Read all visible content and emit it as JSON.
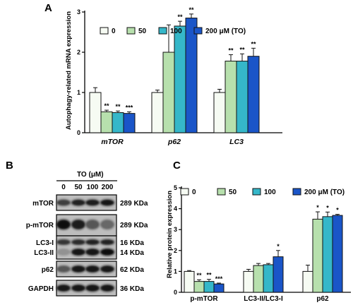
{
  "panels": {
    "a": "A",
    "b": "B",
    "c": "C"
  },
  "colors": {
    "s0": "#f6fbf3",
    "s50": "#b7e0ad",
    "s100": "#35b7c9",
    "s200": "#1a55c8",
    "stroke": "#111111"
  },
  "chart_data": [
    {
      "id": "A",
      "type": "bar",
      "ylabel": "Autophagy-related mRNA expression",
      "ylim": [
        0,
        3
      ],
      "yticks": [
        "0",
        "1",
        "2",
        "3"
      ],
      "categories": [
        "mTOR",
        "p62",
        "LC3"
      ],
      "series": [
        {
          "name": "0",
          "values": [
            1.0,
            1.0,
            1.0
          ],
          "errors": [
            0.12,
            0.06,
            0.08
          ]
        },
        {
          "name": "50",
          "values": [
            0.52,
            2.0,
            1.78
          ],
          "errors": [
            0.04,
            0.68,
            0.16
          ]
        },
        {
          "name": "100",
          "values": [
            0.5,
            2.65,
            1.78
          ],
          "errors": [
            0.04,
            0.12,
            0.18
          ]
        },
        {
          "name": "200 μM (TO)",
          "values": [
            0.48,
            2.85,
            1.9
          ],
          "errors": [
            0.04,
            0.1,
            0.2
          ]
        }
      ],
      "annotations": [
        [
          "",
          "**",
          "**",
          "***"
        ],
        [
          "",
          "",
          "**",
          "**"
        ],
        [
          "",
          "**",
          "**",
          "**"
        ]
      ],
      "legend": "top"
    },
    {
      "id": "C",
      "type": "bar",
      "ylabel": "Relative protein expression",
      "ylim": [
        0,
        5
      ],
      "yticks": [
        "0",
        "1",
        "2",
        "3",
        "4",
        "5"
      ],
      "categories": [
        "p-mTOR",
        "LC3-II/LC3-I",
        "p62"
      ],
      "series": [
        {
          "name": "0",
          "values": [
            1.0,
            1.0,
            1.0
          ],
          "errors": [
            0.04,
            0.1,
            0.3
          ]
        },
        {
          "name": "50",
          "values": [
            0.52,
            1.28,
            3.5
          ],
          "errors": [
            0.08,
            0.1,
            0.35
          ]
        },
        {
          "name": "100",
          "values": [
            0.52,
            1.32,
            3.62
          ],
          "errors": [
            0.1,
            0.06,
            0.22
          ]
        },
        {
          "name": "200 μM (TO)",
          "values": [
            0.4,
            1.7,
            3.68
          ],
          "errors": [
            0.04,
            0.3,
            0.05
          ]
        }
      ],
      "annotations": [
        [
          "",
          "**",
          "**",
          "***"
        ],
        [
          "",
          "",
          "",
          "*"
        ],
        [
          "",
          "*",
          "*",
          "*"
        ]
      ],
      "legend": "top"
    }
  ],
  "blot": {
    "title": "TO (μM)",
    "doses": [
      "0",
      "50",
      "100",
      "200"
    ],
    "rows": [
      {
        "label": "mTOR",
        "kda": "289 KDa"
      },
      {
        "label": "p-mTOR",
        "kda": "289 KDa"
      },
      {
        "label": "LC3-I",
        "kda": "16 KDa"
      },
      {
        "label": "LC3-II",
        "kda": "14 KDa"
      },
      {
        "label": "p62",
        "kda": "62 KDa"
      },
      {
        "label": "GAPDH",
        "kda": "36 KDa"
      }
    ]
  }
}
